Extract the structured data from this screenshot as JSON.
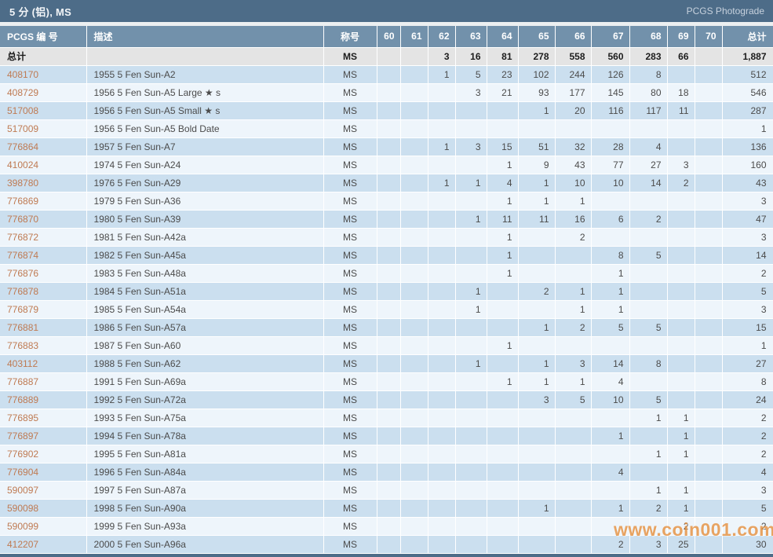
{
  "header": {
    "title": "5 分 (铝), MS",
    "right_label": "PCGS Photograde"
  },
  "watermark": "www.coin001.com",
  "colors": {
    "titlebar_bg": "#4d6c88",
    "header_row_bg": "#7291ab",
    "totals_row_bg": "#e4e4e4",
    "row_odd_bg": "#cbdfef",
    "row_even_bg": "#eef5fb",
    "id_link": "#bf7a52",
    "watermark": "#e68f3c"
  },
  "table": {
    "columns": [
      "PCGS 编 号",
      "描述",
      "称号",
      "60",
      "61",
      "62",
      "63",
      "64",
      "65",
      "66",
      "67",
      "68",
      "69",
      "70",
      "总计"
    ],
    "totals_row": {
      "label": "总计",
      "designation": "MS",
      "grades": [
        "",
        "",
        "3",
        "16",
        "81",
        "278",
        "558",
        "560",
        "283",
        "66",
        ""
      ],
      "total": "1,887"
    },
    "rows": [
      {
        "id": "408170",
        "desc": "1955 5 Fen Sun-A2",
        "designation": "MS",
        "grades": [
          "",
          "",
          "1",
          "5",
          "23",
          "102",
          "244",
          "126",
          "8",
          "",
          ""
        ],
        "total": "512"
      },
      {
        "id": "408729",
        "desc": "1956 5 Fen Sun-A5 Large ★ s",
        "designation": "MS",
        "grades": [
          "",
          "",
          "",
          "3",
          "21",
          "93",
          "177",
          "145",
          "80",
          "18",
          ""
        ],
        "total": "546"
      },
      {
        "id": "517008",
        "desc": "1956 5 Fen Sun-A5 Small ★ s",
        "designation": "MS",
        "grades": [
          "",
          "",
          "",
          "",
          "",
          "1",
          "20",
          "116",
          "117",
          "11",
          ""
        ],
        "total": "287"
      },
      {
        "id": "517009",
        "desc": "1956 5 Fen Sun-A5 Bold Date",
        "designation": "MS",
        "grades": [
          "",
          "",
          "",
          "",
          "",
          "",
          "",
          "",
          "",
          "",
          ""
        ],
        "total": "1"
      },
      {
        "id": "776864",
        "desc": "1957 5 Fen Sun-A7",
        "designation": "MS",
        "grades": [
          "",
          "",
          "1",
          "3",
          "15",
          "51",
          "32",
          "28",
          "4",
          "",
          ""
        ],
        "total": "136"
      },
      {
        "id": "410024",
        "desc": "1974 5 Fen Sun-A24",
        "designation": "MS",
        "grades": [
          "",
          "",
          "",
          "",
          "1",
          "9",
          "43",
          "77",
          "27",
          "3",
          ""
        ],
        "total": "160"
      },
      {
        "id": "398780",
        "desc": "1976 5 Fen Sun-A29",
        "designation": "MS",
        "grades": [
          "",
          "",
          "1",
          "1",
          "4",
          "1",
          "10",
          "10",
          "14",
          "2",
          ""
        ],
        "total": "43"
      },
      {
        "id": "776869",
        "desc": "1979 5 Fen Sun-A36",
        "designation": "MS",
        "grades": [
          "",
          "",
          "",
          "",
          "1",
          "1",
          "1",
          "",
          "",
          "",
          ""
        ],
        "total": "3"
      },
      {
        "id": "776870",
        "desc": "1980 5 Fen Sun-A39",
        "designation": "MS",
        "grades": [
          "",
          "",
          "",
          "1",
          "11",
          "11",
          "16",
          "6",
          "2",
          "",
          ""
        ],
        "total": "47"
      },
      {
        "id": "776872",
        "desc": "1981 5 Fen Sun-A42a",
        "designation": "MS",
        "grades": [
          "",
          "",
          "",
          "",
          "1",
          "",
          "2",
          "",
          "",
          "",
          ""
        ],
        "total": "3"
      },
      {
        "id": "776874",
        "desc": "1982 5 Fen Sun-A45a",
        "designation": "MS",
        "grades": [
          "",
          "",
          "",
          "",
          "1",
          "",
          "",
          "8",
          "5",
          "",
          ""
        ],
        "total": "14"
      },
      {
        "id": "776876",
        "desc": "1983 5 Fen Sun-A48a",
        "designation": "MS",
        "grades": [
          "",
          "",
          "",
          "",
          "1",
          "",
          "",
          "1",
          "",
          "",
          ""
        ],
        "total": "2"
      },
      {
        "id": "776878",
        "desc": "1984 5 Fen Sun-A51a",
        "designation": "MS",
        "grades": [
          "",
          "",
          "",
          "1",
          "",
          "2",
          "1",
          "1",
          "",
          "",
          ""
        ],
        "total": "5"
      },
      {
        "id": "776879",
        "desc": "1985 5 Fen Sun-A54a",
        "designation": "MS",
        "grades": [
          "",
          "",
          "",
          "1",
          "",
          "",
          "1",
          "1",
          "",
          "",
          ""
        ],
        "total": "3"
      },
      {
        "id": "776881",
        "desc": "1986 5 Fen Sun-A57a",
        "designation": "MS",
        "grades": [
          "",
          "",
          "",
          "",
          "",
          "1",
          "2",
          "5",
          "5",
          "",
          ""
        ],
        "total": "15"
      },
      {
        "id": "776883",
        "desc": "1987 5 Fen Sun-A60",
        "designation": "MS",
        "grades": [
          "",
          "",
          "",
          "",
          "1",
          "",
          "",
          "",
          "",
          "",
          ""
        ],
        "total": "1"
      },
      {
        "id": "403112",
        "desc": "1988 5 Fen Sun-A62",
        "designation": "MS",
        "grades": [
          "",
          "",
          "",
          "1",
          "",
          "1",
          "3",
          "14",
          "8",
          "",
          ""
        ],
        "total": "27"
      },
      {
        "id": "776887",
        "desc": "1991 5 Fen Sun-A69a",
        "designation": "MS",
        "grades": [
          "",
          "",
          "",
          "",
          "1",
          "1",
          "1",
          "4",
          "",
          "",
          ""
        ],
        "total": "8"
      },
      {
        "id": "776889",
        "desc": "1992 5 Fen Sun-A72a",
        "designation": "MS",
        "grades": [
          "",
          "",
          "",
          "",
          "",
          "3",
          "5",
          "10",
          "5",
          "",
          ""
        ],
        "total": "24"
      },
      {
        "id": "776895",
        "desc": "1993 5 Fen Sun-A75a",
        "designation": "MS",
        "grades": [
          "",
          "",
          "",
          "",
          "",
          "",
          "",
          "",
          "1",
          "1",
          ""
        ],
        "total": "2"
      },
      {
        "id": "776897",
        "desc": "1994 5 Fen Sun-A78a",
        "designation": "MS",
        "grades": [
          "",
          "",
          "",
          "",
          "",
          "",
          "",
          "1",
          "",
          "1",
          ""
        ],
        "total": "2"
      },
      {
        "id": "776902",
        "desc": "1995 5 Fen Sun-A81a",
        "designation": "MS",
        "grades": [
          "",
          "",
          "",
          "",
          "",
          "",
          "",
          "",
          "1",
          "1",
          ""
        ],
        "total": "2"
      },
      {
        "id": "776904",
        "desc": "1996 5 Fen Sun-A84a",
        "designation": "MS",
        "grades": [
          "",
          "",
          "",
          "",
          "",
          "",
          "",
          "4",
          "",
          "",
          ""
        ],
        "total": "4"
      },
      {
        "id": "590097",
        "desc": "1997 5 Fen Sun-A87a",
        "designation": "MS",
        "grades": [
          "",
          "",
          "",
          "",
          "",
          "",
          "",
          "",
          "1",
          "1",
          ""
        ],
        "total": "3"
      },
      {
        "id": "590098",
        "desc": "1998 5 Fen Sun-A90a",
        "designation": "MS",
        "grades": [
          "",
          "",
          "",
          "",
          "",
          "1",
          "",
          "1",
          "2",
          "1",
          ""
        ],
        "total": "5"
      },
      {
        "id": "590099",
        "desc": "1999 5 Fen Sun-A93a",
        "designation": "MS",
        "grades": [
          "",
          "",
          "",
          "",
          "",
          "",
          "",
          "",
          "",
          "2",
          ""
        ],
        "total": "2"
      },
      {
        "id": "412207",
        "desc": "2000 5 Fen Sun-A96a",
        "designation": "MS",
        "grades": [
          "",
          "",
          "",
          "",
          "",
          "",
          "",
          "2",
          "3",
          "25",
          ""
        ],
        "total": "30"
      }
    ]
  }
}
